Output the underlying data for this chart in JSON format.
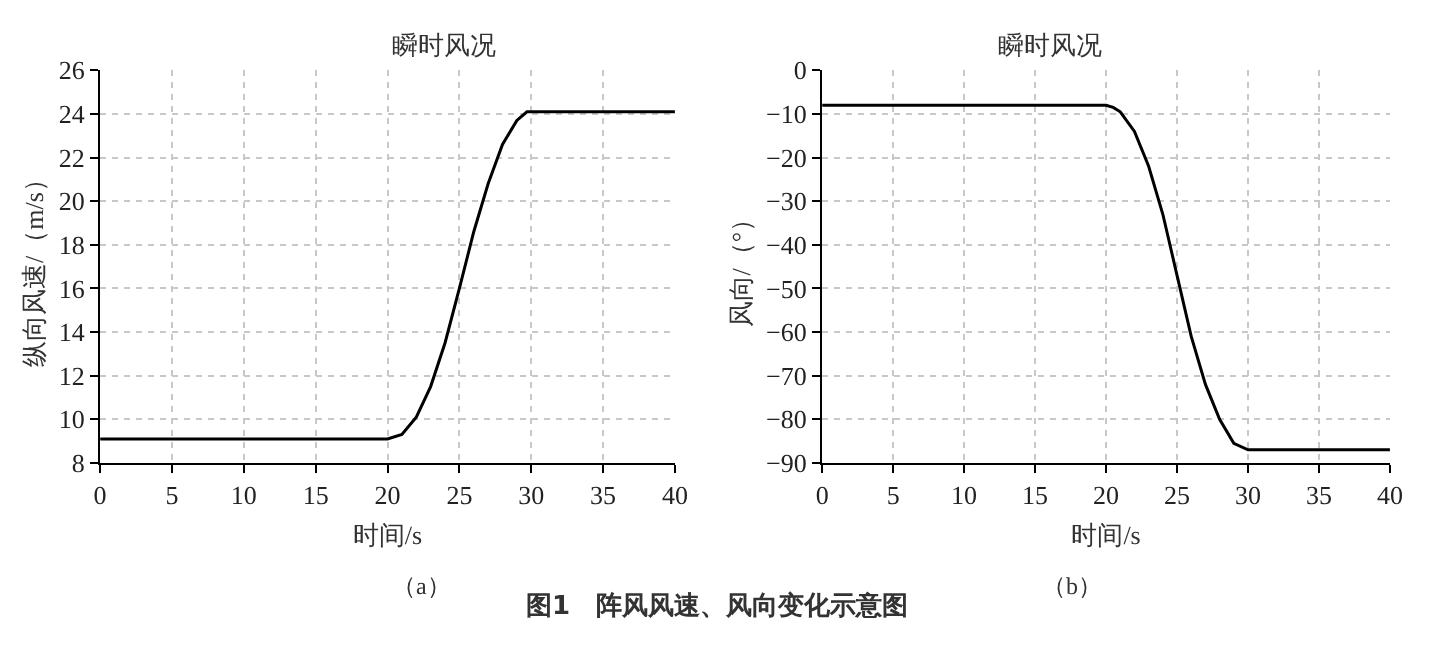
{
  "chart_data": [
    {
      "type": "line",
      "title": "瞬时风况",
      "xlabel": "时间/s",
      "ylabel": "纵向风速/（m/s）",
      "annotations": [
        "（a）",
        "图1　阵风风速、风向变化示意图"
      ],
      "series": [
        {
          "color": "#000000",
          "x": [
            0,
            20,
            21,
            22,
            23,
            24,
            25,
            26,
            27,
            28,
            29,
            29.7,
            40
          ],
          "values": [
            9.1,
            9.1,
            9.3,
            10.1,
            11.5,
            13.5,
            16.0,
            18.6,
            20.8,
            22.6,
            23.7,
            24.1,
            24.1
          ]
        }
      ],
      "xlim": [
        0,
        40
      ],
      "xticks": [
        0,
        5,
        10,
        15,
        20,
        25,
        30,
        35,
        40
      ],
      "ylim": [
        8,
        26
      ],
      "yticks": [
        8,
        10,
        12,
        14,
        16,
        18,
        20,
        22,
        24,
        26
      ],
      "grid": true,
      "marker": "none",
      "line_style": "solid"
    },
    {
      "type": "line",
      "title": "瞬时风况",
      "xlabel": "时间/s",
      "ylabel": "风向/（°）",
      "annotations": [
        "（b）"
      ],
      "series": [
        {
          "color": "#000000",
          "x": [
            0,
            20,
            20.5,
            21,
            22,
            23,
            24,
            25,
            26,
            27,
            28,
            29,
            30,
            40
          ],
          "values": [
            -8,
            -8,
            -8.5,
            -9.5,
            -14,
            -22,
            -33,
            -47,
            -61,
            -72,
            -80,
            -85.5,
            -87,
            -87
          ]
        }
      ],
      "xlim": [
        0,
        40
      ],
      "xticks": [
        0,
        5,
        10,
        15,
        20,
        25,
        30,
        35,
        40
      ],
      "ylim": [
        -90,
        0
      ],
      "yticks": [
        -90,
        -80,
        -70,
        -60,
        -50,
        -40,
        -30,
        -20,
        -10,
        0
      ],
      "grid": true,
      "marker": "none",
      "line_style": "solid"
    }
  ]
}
